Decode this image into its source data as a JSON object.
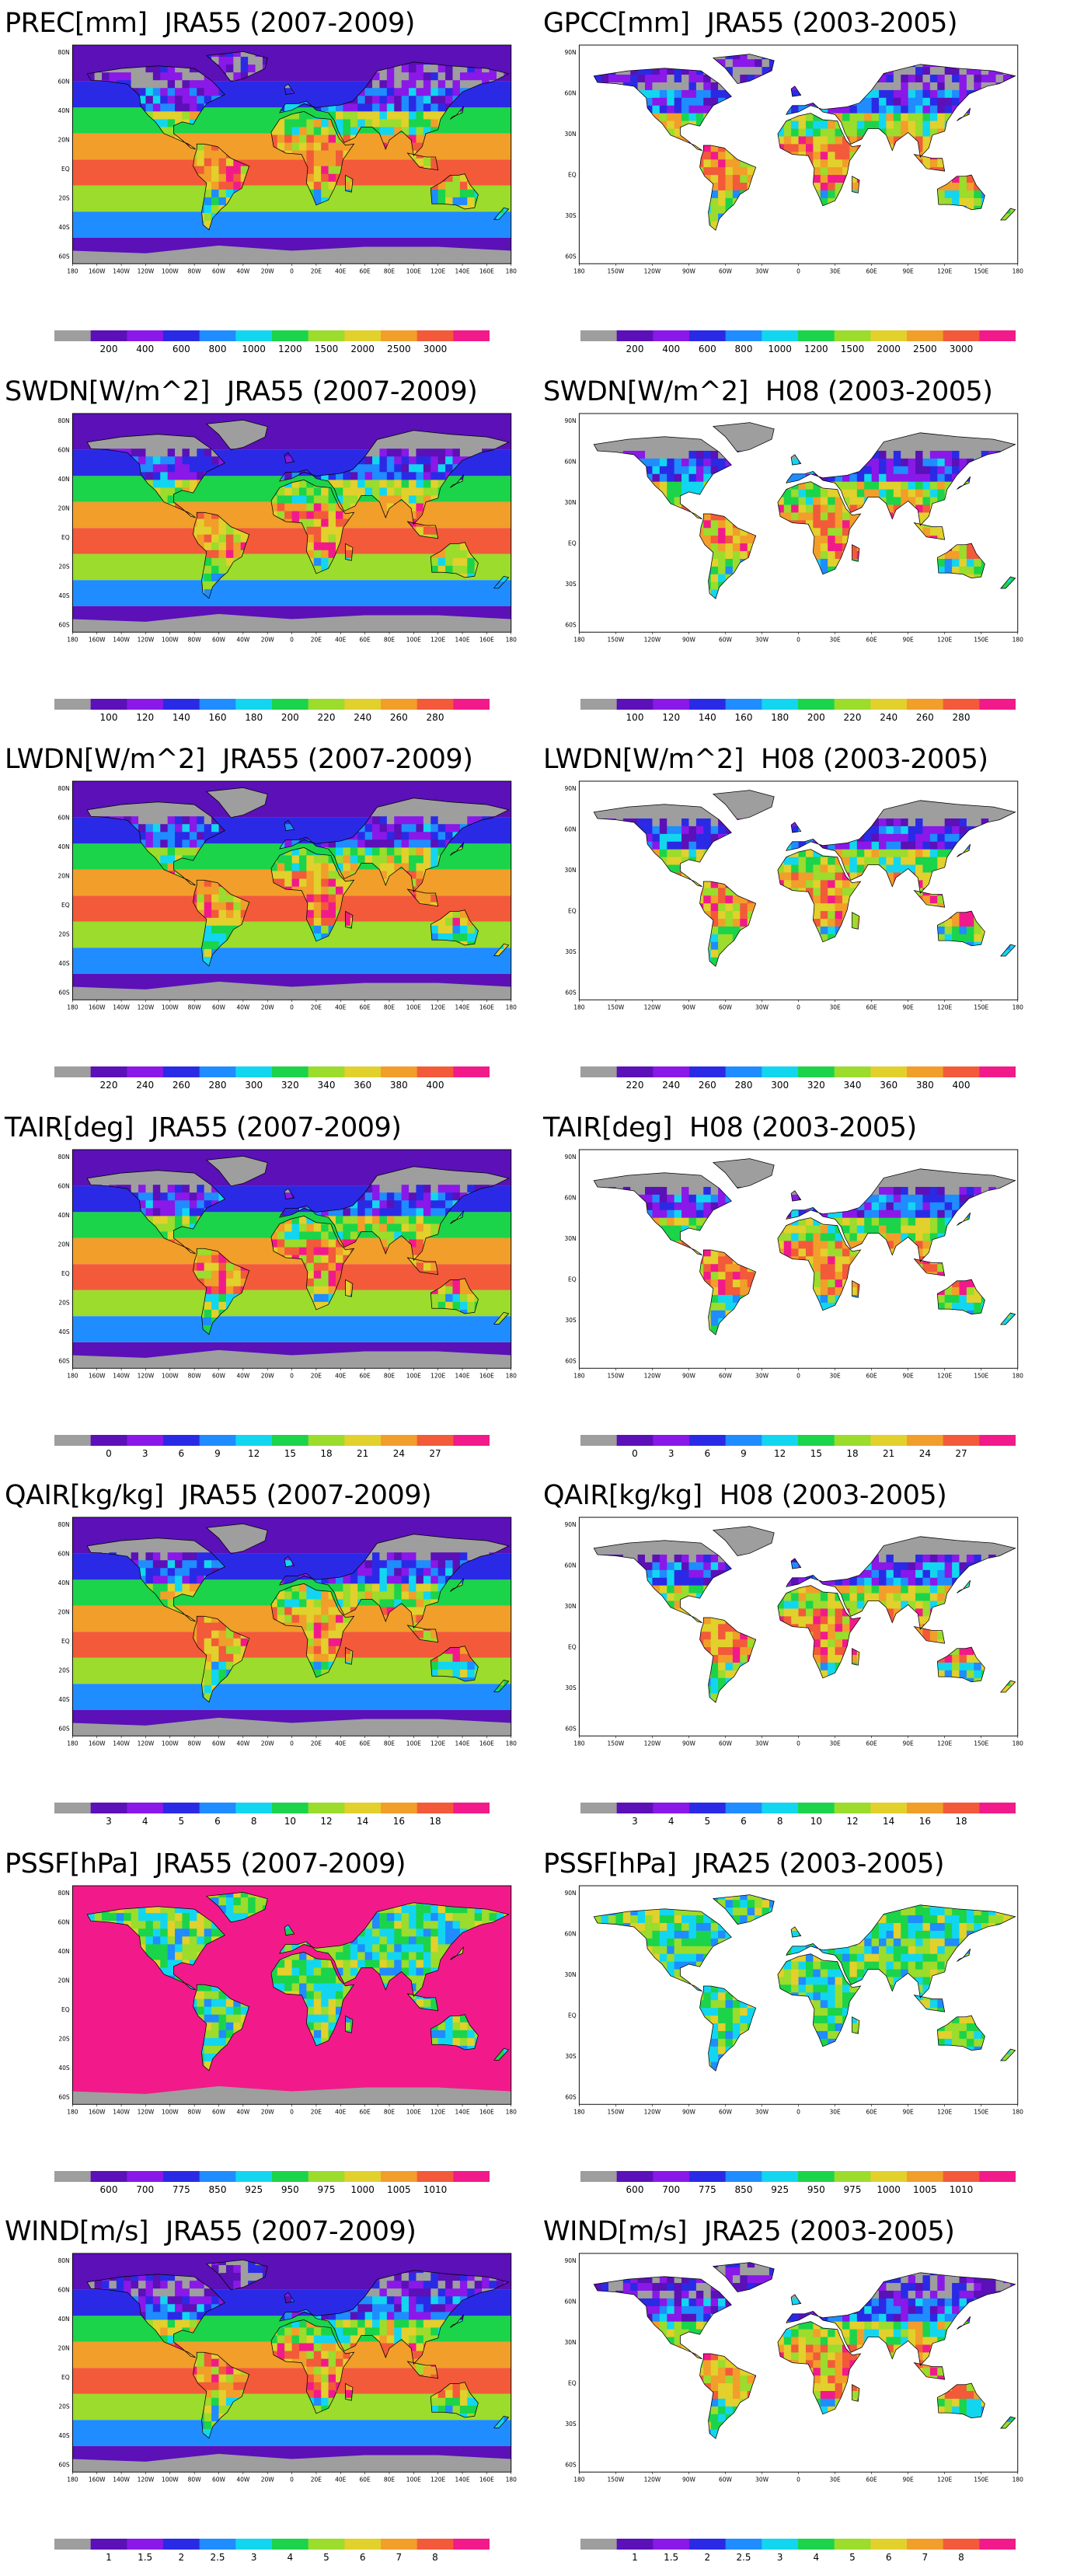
{
  "color_scales": {
    "full": [
      "#9e9e9e",
      "#5b10b8",
      "#8a18e8",
      "#2a2ae6",
      "#1f8cff",
      "#12d6f0",
      "#1bd44a",
      "#9bdc2c",
      "#e2d02c",
      "#f29e2a",
      "#f25a3a",
      "#f21a8a"
    ],
    "pssf": [
      "#9e9e9e",
      "#5b10b8",
      "#8a18e8",
      "#2a2ae6",
      "#1f8cff",
      "#12d6f0",
      "#1bd44a",
      "#9bdc2c",
      "#e2d02c",
      "#f29e2a",
      "#f25a3a",
      "#f21a8a"
    ]
  },
  "axis_labels": {
    "jra_lon": [
      "180",
      "160W",
      "140W",
      "120W",
      "100W",
      "80W",
      "60W",
      "40W",
      "20W",
      "0",
      "20E",
      "40E",
      "60E",
      "80E",
      "100E",
      "120E",
      "140E",
      "160E",
      "180"
    ],
    "jra_lat": [
      "80N",
      "60N",
      "40N",
      "20N",
      "EQ",
      "20S",
      "40S",
      "60S"
    ],
    "obs_lon": [
      "180",
      "150W",
      "120W",
      "90W",
      "60W",
      "30W",
      "0",
      "30E",
      "60E",
      "90E",
      "120E",
      "150E",
      "180"
    ],
    "obs_lat": [
      "90N",
      "60N",
      "30N",
      "EQ",
      "30S",
      "60S"
    ]
  },
  "panels": [
    {
      "var": "PREC[mm]",
      "src": "JRA55 (2007-2009)",
      "type": "jra",
      "pal": "full",
      "labels": [
        "200",
        "400",
        "600",
        "800",
        "1000",
        "1200",
        "1500",
        "2000",
        "2500",
        "3000"
      ]
    },
    {
      "var": "GPCC[mm]",
      "src": "JRA55 (2003-2005)",
      "type": "obs",
      "pal": "full",
      "labels": [
        "200",
        "400",
        "600",
        "800",
        "1000",
        "1200",
        "1500",
        "2000",
        "2500",
        "3000"
      ]
    },
    {
      "var": "SWDN[W/m^2]",
      "src": "JRA55 (2007-2009)",
      "type": "jra",
      "pal": "full",
      "labels": [
        "100",
        "120",
        "140",
        "160",
        "180",
        "200",
        "220",
        "240",
        "260",
        "280"
      ]
    },
    {
      "var": "SWDN[W/m^2]",
      "src": "H08 (2003-2005)",
      "type": "obs",
      "pal": "full",
      "labels": [
        "100",
        "120",
        "140",
        "160",
        "180",
        "200",
        "220",
        "240",
        "260",
        "280"
      ]
    },
    {
      "var": "LWDN[W/m^2]",
      "src": "JRA55 (2007-2009)",
      "type": "jra",
      "pal": "full",
      "labels": [
        "220",
        "240",
        "260",
        "280",
        "300",
        "320",
        "340",
        "360",
        "380",
        "400"
      ]
    },
    {
      "var": "LWDN[W/m^2]",
      "src": "H08 (2003-2005)",
      "type": "obs",
      "pal": "full",
      "labels": [
        "220",
        "240",
        "260",
        "280",
        "300",
        "320",
        "340",
        "360",
        "380",
        "400"
      ]
    },
    {
      "var": "TAIR[deg]",
      "src": "JRA55 (2007-2009)",
      "type": "jra",
      "pal": "full",
      "labels": [
        "0",
        "3",
        "6",
        "9",
        "12",
        "15",
        "18",
        "21",
        "24",
        "27"
      ]
    },
    {
      "var": "TAIR[deg]",
      "src": "H08 (2003-2005)",
      "type": "obs",
      "pal": "full",
      "labels": [
        "0",
        "3",
        "6",
        "9",
        "12",
        "15",
        "18",
        "21",
        "24",
        "27"
      ]
    },
    {
      "var": "QAIR[kg/kg]",
      "src": "JRA55 (2007-2009)",
      "type": "jra",
      "pal": "full",
      "labels": [
        "3",
        "4",
        "5",
        "6",
        "8",
        "10",
        "12",
        "14",
        "16",
        "18"
      ]
    },
    {
      "var": "QAIR[kg/kg]",
      "src": "H08 (2003-2005)",
      "type": "obs",
      "pal": "full",
      "labels": [
        "3",
        "4",
        "5",
        "6",
        "8",
        "10",
        "12",
        "14",
        "16",
        "18"
      ]
    },
    {
      "var": "PSSF[hPa]",
      "src": "JRA55 (2007-2009)",
      "type": "jra",
      "pal": "pssf",
      "labels": [
        "600",
        "700",
        "775",
        "850",
        "925",
        "950",
        "975",
        "1000",
        "1005",
        "1010"
      ]
    },
    {
      "var": "PSSF[hPa]",
      "src": "JRA25 (2003-2005)",
      "type": "obs",
      "pal": "pssf",
      "labels": [
        "600",
        "700",
        "775",
        "850",
        "925",
        "950",
        "975",
        "1000",
        "1005",
        "1010"
      ]
    },
    {
      "var": "WIND[m/s]",
      "src": "JRA55 (2007-2009)",
      "type": "jra",
      "pal": "full",
      "labels": [
        "1",
        "1.5",
        "2",
        "2.5",
        "3",
        "4",
        "5",
        "6",
        "7",
        "8"
      ]
    },
    {
      "var": "WIND[m/s]",
      "src": "JRA25 (2003-2005)",
      "type": "obs",
      "pal": "full",
      "labels": [
        "1",
        "1.5",
        "2",
        "2.5",
        "3",
        "4",
        "5",
        "6",
        "7",
        "8"
      ]
    }
  ]
}
